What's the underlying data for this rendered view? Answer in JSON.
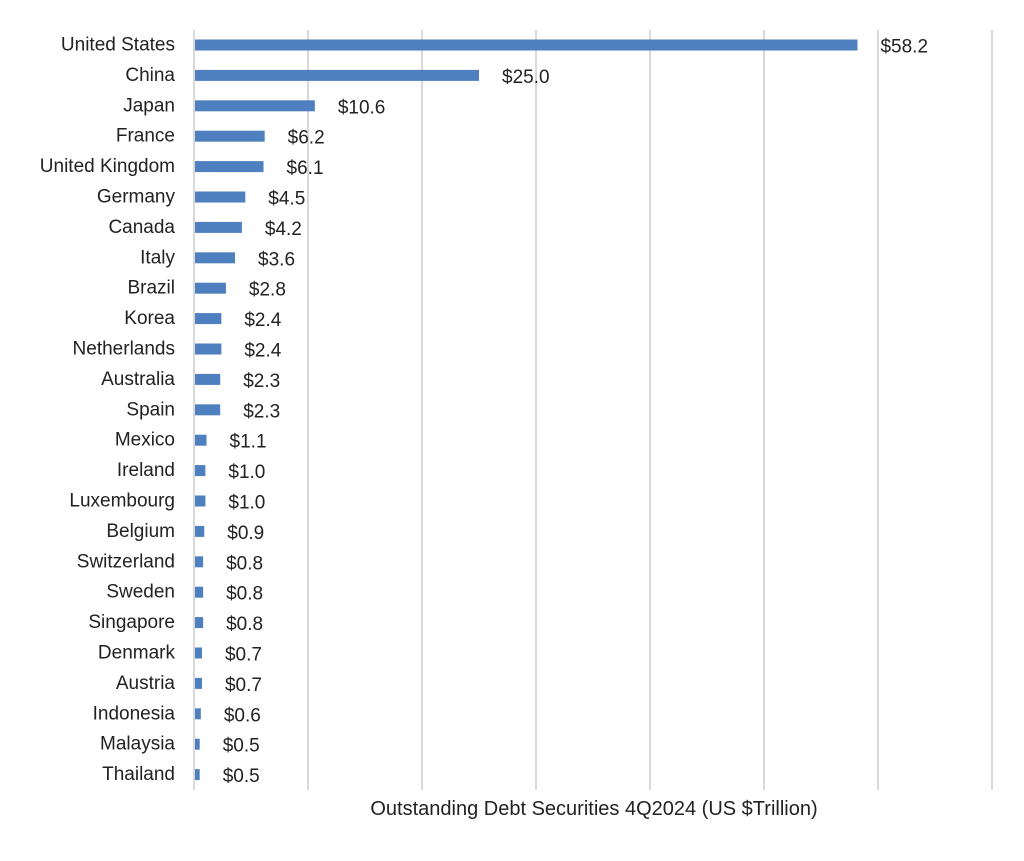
{
  "chart_data": {
    "type": "bar",
    "orientation": "horizontal",
    "categories": [
      "United States",
      "China",
      "Japan",
      "France",
      "United Kingdom",
      "Germany",
      "Canada",
      "Italy",
      "Brazil",
      "Korea",
      "Netherlands",
      "Australia",
      "Spain",
      "Mexico",
      "Ireland",
      "Luxembourg",
      "Belgium",
      "Switzerland",
      "Sweden",
      "Singapore",
      "Denmark",
      "Austria",
      "Indonesia",
      "Malaysia",
      "Thailand"
    ],
    "values": [
      58.2,
      25.0,
      10.6,
      6.2,
      6.1,
      4.5,
      4.2,
      3.6,
      2.8,
      2.4,
      2.4,
      2.3,
      2.3,
      1.1,
      1.0,
      1.0,
      0.9,
      0.8,
      0.8,
      0.8,
      0.7,
      0.7,
      0.6,
      0.5,
      0.5
    ],
    "data_labels": [
      "$58.2",
      "$25.0",
      "$10.6",
      "$6.2",
      "$6.1",
      "$4.5",
      "$4.2",
      "$3.6",
      "$2.8",
      "$2.4",
      "$2.4",
      "$2.3",
      "$2.3",
      "$1.1",
      "$1.0",
      "$1.0",
      "$0.9",
      "$0.8",
      "$0.8",
      "$0.8",
      "$0.7",
      "$0.7",
      "$0.6",
      "$0.5",
      "$0.5"
    ],
    "xlabel": "Outstanding  Debt Securities 4Q2024  (US $Trillion)",
    "xlim": [
      0,
      70
    ],
    "gridlines_every": 10,
    "grid": true,
    "tick_labels_shown": false,
    "bar_color": "#4e7fbf",
    "grid_color": "#d9d9d9"
  }
}
